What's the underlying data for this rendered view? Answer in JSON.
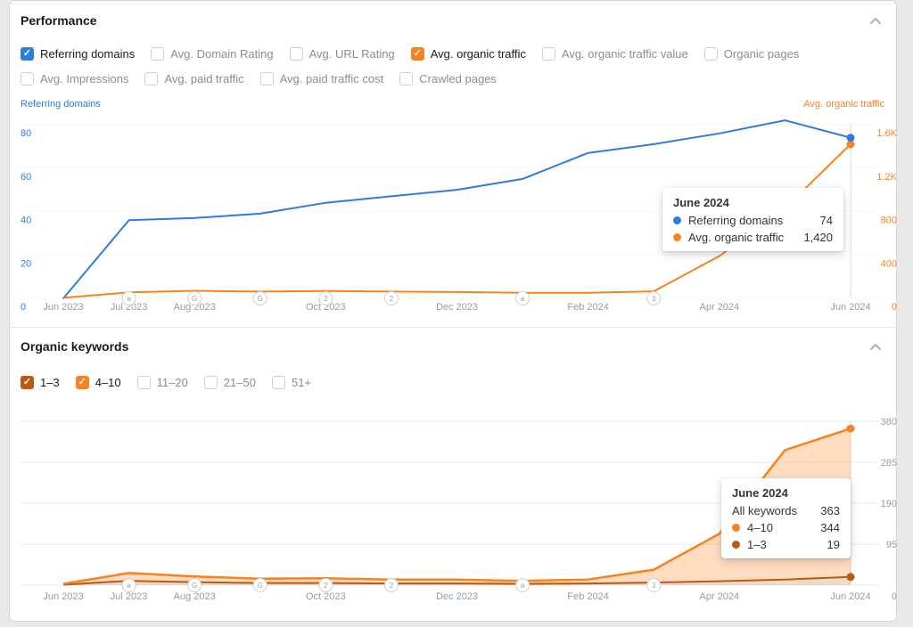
{
  "colors": {
    "blue": "#2e7ce0",
    "orange": "#f8831e",
    "dark_orange": "#bb5a13",
    "gray_text": "#9a9a9a",
    "grid_dotted": "#dddddd",
    "grid_solid": "#e9e9e9",
    "hover_line": "#d9d9d9",
    "area_light": "rgba(248,131,30,0.28)",
    "area_dark": "rgba(187,90,19,0.22)"
  },
  "performance": {
    "title": "Performance",
    "collapse_icon": "chevron-up-icon",
    "metric_checkboxes_row1": [
      {
        "label": "Referring domains",
        "checked": true,
        "color": "#2e7ce0"
      },
      {
        "label": "Avg. Domain Rating",
        "checked": false
      },
      {
        "label": "Avg. URL Rating",
        "checked": false
      },
      {
        "label": "Avg. organic traffic",
        "checked": true,
        "color": "#f8831e"
      },
      {
        "label": "Avg. organic traffic value",
        "checked": false
      },
      {
        "label": "Organic pages",
        "checked": false
      }
    ],
    "metric_checkboxes_row2": [
      {
        "label": "Avg. Impressions",
        "checked": false
      },
      {
        "label": "Avg. paid traffic",
        "checked": false
      },
      {
        "label": "Avg. paid traffic cost",
        "checked": false
      },
      {
        "label": "Crawled pages",
        "checked": false
      }
    ],
    "chart_data": {
      "type": "line",
      "x": [
        "Jun 2023",
        "Jul 2023",
        "Aug 2023",
        "Sep 2023",
        "Oct 2023",
        "Nov 2023",
        "Dec 2023",
        "Jan 2024",
        "Feb 2024",
        "Mar 2024",
        "Apr 2024",
        "May 2024",
        "Jun 2024"
      ],
      "x_tick_indices": [
        0,
        1,
        2,
        4,
        6,
        8,
        10,
        12
      ],
      "x_tick_labels": [
        "Jun 2023",
        "Jul 2023",
        "Aug 2023",
        "Oct 2023",
        "Dec 2023",
        "Feb 2024",
        "Apr 2024",
        "Jun 2024"
      ],
      "left_axis": {
        "title": "Referring domains",
        "max": 80,
        "tick_labels": [
          "80",
          "60",
          "40",
          "20"
        ],
        "zero_label": "0",
        "color": "#2e7ce0"
      },
      "right_axis": {
        "title": "Avg. organic traffic",
        "max": 1600,
        "tick_labels": [
          "1.6K",
          "1.2K",
          "800",
          "400"
        ],
        "zero_label": "0",
        "color": "#f8831e"
      },
      "series": [
        {
          "name": "Referring domains",
          "axis": "left",
          "color": "#2e7ce0",
          "values": [
            0,
            36,
            37,
            39,
            44,
            47,
            50,
            55,
            67,
            71,
            76,
            82,
            74
          ]
        },
        {
          "name": "Avg. organic traffic",
          "axis": "right",
          "color": "#f8831e",
          "values": [
            5,
            55,
            70,
            62,
            68,
            62,
            58,
            52,
            52,
            65,
            390,
            830,
            1420
          ]
        }
      ],
      "event_markers": [
        {
          "index": 1,
          "label": "a"
        },
        {
          "index": 2,
          "label": "G"
        },
        {
          "index": 3,
          "label": "G"
        },
        {
          "index": 4,
          "label": "2"
        },
        {
          "index": 5,
          "label": "2"
        },
        {
          "index": 7,
          "label": "a"
        },
        {
          "index": 9,
          "label": "3"
        }
      ],
      "hover_index": 12,
      "grid": "dotted",
      "legend_position": "top"
    },
    "tooltip": {
      "title": "June 2024",
      "rows": [
        {
          "dot": "#2e7ce0",
          "label": "Referring domains",
          "value": "74"
        },
        {
          "dot": "#f8831e",
          "label": "Avg. organic traffic",
          "value": "1,420"
        }
      ]
    }
  },
  "keywords": {
    "title": "Organic keywords",
    "collapse_icon": "chevron-up-icon",
    "position_checkboxes": [
      {
        "label": "1–3",
        "checked": true,
        "color": "#bb5a13"
      },
      {
        "label": "4–10",
        "checked": true,
        "color": "#f8831e"
      },
      {
        "label": "11–20",
        "checked": false
      },
      {
        "label": "21–50",
        "checked": false
      },
      {
        "label": "51+",
        "checked": false
      }
    ],
    "chart_data": {
      "type": "area",
      "stacked": true,
      "x": [
        "Jun 2023",
        "Jul 2023",
        "Aug 2023",
        "Sep 2023",
        "Oct 2023",
        "Nov 2023",
        "Dec 2023",
        "Jan 2024",
        "Feb 2024",
        "Mar 2024",
        "Apr 2024",
        "May 2024",
        "Jun 2024"
      ],
      "x_tick_indices": [
        0,
        1,
        2,
        4,
        6,
        8,
        10,
        12
      ],
      "x_tick_labels": [
        "Jun 2023",
        "Jul 2023",
        "Aug 2023",
        "Oct 2023",
        "Dec 2023",
        "Feb 2024",
        "Apr 2024",
        "Jun 2024"
      ],
      "right_axis": {
        "max": 380,
        "tick_labels": [
          "380",
          "285",
          "190",
          "95"
        ],
        "zero_label": "0",
        "color": "#9a9a9a"
      },
      "series": [
        {
          "name": "1–3",
          "color": "#bb5a13",
          "values": [
            1,
            10,
            7,
            5,
            5,
            4,
            4,
            3,
            4,
            6,
            9,
            13,
            19
          ]
        },
        {
          "name": "4–10",
          "color": "#f8831e",
          "values": [
            2,
            18,
            13,
            10,
            11,
            9,
            9,
            7,
            9,
            30,
            110,
            300,
            344
          ]
        }
      ],
      "total_name": "All keywords",
      "total_at_hover": 363,
      "event_markers": [
        {
          "index": 1,
          "label": "a"
        },
        {
          "index": 2,
          "label": "G"
        },
        {
          "index": 3,
          "label": "G"
        },
        {
          "index": 4,
          "label": "2"
        },
        {
          "index": 5,
          "label": "2"
        },
        {
          "index": 7,
          "label": "a"
        },
        {
          "index": 9,
          "label": "3"
        }
      ],
      "hover_index": 12,
      "grid": "solid"
    },
    "tooltip": {
      "title": "June 2024",
      "rows": [
        {
          "label": "All keywords",
          "value": "363"
        },
        {
          "dot": "#f8831e",
          "label": "4–10",
          "value": "344"
        },
        {
          "dot": "#bb5a13",
          "label": "1–3",
          "value": "19"
        }
      ]
    }
  }
}
